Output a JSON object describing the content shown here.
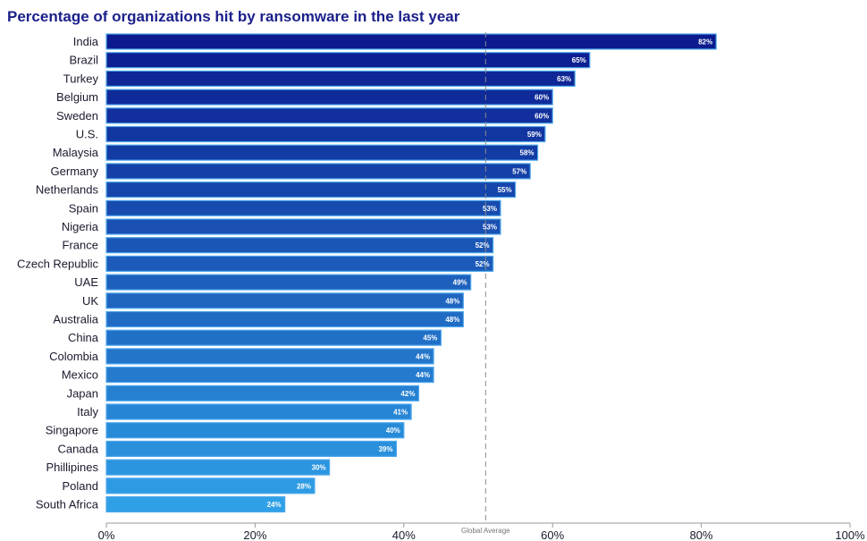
{
  "chart_data": {
    "type": "bar",
    "orientation": "horizontal",
    "title": "Percentage of organizations hit by ransomware in the last year",
    "categories": [
      "India",
      "Brazil",
      "Turkey",
      "Belgium",
      "Sweden",
      "U.S.",
      "Malaysia",
      "Germany",
      "Netherlands",
      "Spain",
      "Nigeria",
      "France",
      "Czech Republic",
      "UAE",
      "UK",
      "Australia",
      "China",
      "Colombia",
      "Mexico",
      "Japan",
      "Italy",
      "Singapore",
      "Canada",
      "Phillipines",
      "Poland",
      "South Africa"
    ],
    "values": [
      82,
      65,
      63,
      60,
      60,
      59,
      58,
      57,
      55,
      53,
      53,
      52,
      52,
      49,
      48,
      48,
      45,
      44,
      44,
      42,
      41,
      40,
      39,
      30,
      28,
      24
    ],
    "value_labels": [
      "82%",
      "65%",
      "63%",
      "60%",
      "60%",
      "59%",
      "58%",
      "57%",
      "55%",
      "53%",
      "53%",
      "52%",
      "52%",
      "49%",
      "48%",
      "48%",
      "45%",
      "44%",
      "44%",
      "42%",
      "41%",
      "40%",
      "39%",
      "30%",
      "28%",
      "24%"
    ],
    "xlim": [
      0,
      100
    ],
    "x_ticks": [
      0,
      20,
      40,
      60,
      80,
      100
    ],
    "x_tick_labels": [
      "0%",
      "20%",
      "40%",
      "60%",
      "80%",
      "100%"
    ],
    "reference_line": {
      "value": 51,
      "label": "Global Average",
      "style": "dashed"
    },
    "grid": false,
    "colors": {
      "top": "#0b1b8f",
      "bottom": "#2ea0e6",
      "outline": "#4fa8ee",
      "title": "#1b1f8a"
    }
  }
}
